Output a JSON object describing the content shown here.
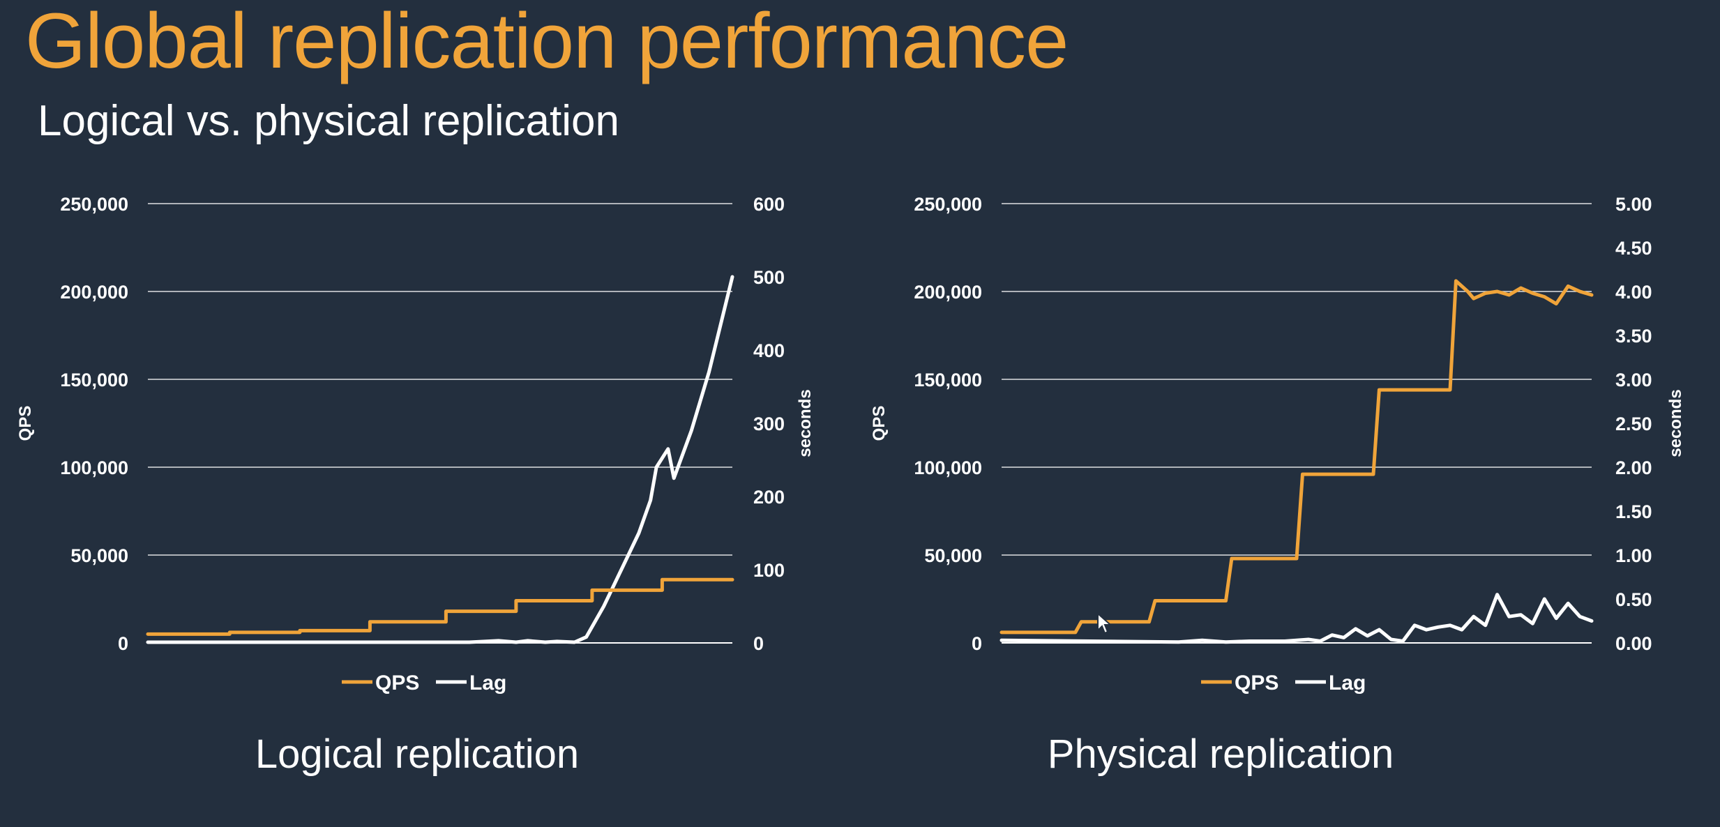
{
  "page": {
    "title": "Global replication performance",
    "subtitle": "Logical vs. physical replication"
  },
  "colors": {
    "background": "#232f3e",
    "qps": "#f0a43a",
    "lag": "#ffffff",
    "title": "#f0a43a",
    "grid": "#ffffff"
  },
  "chart_data": [
    {
      "type": "line",
      "title": "Logical replication",
      "ylabel": "QPS",
      "ylabel2": "seconds",
      "ylim": [
        0,
        250000
      ],
      "ylim2": [
        0,
        600
      ],
      "yticks": [
        "250,000",
        "200,000",
        "150,000",
        "100,000",
        "50,000",
        "0"
      ],
      "yticks2": [
        "600",
        "500",
        "400",
        "300",
        "200",
        "100",
        "0"
      ],
      "grid": true,
      "legend": "bottom",
      "series": [
        {
          "name": "QPS",
          "axis": "left",
          "color": "#f0a43a",
          "points": [
            [
              0,
              5000
            ],
            [
              14,
              5000
            ],
            [
              14,
              6000
            ],
            [
              26,
              6000
            ],
            [
              26,
              7000
            ],
            [
              38,
              7000
            ],
            [
              38,
              12000
            ],
            [
              51,
              12000
            ],
            [
              51,
              18000
            ],
            [
              63,
              18000
            ],
            [
              63,
              24000
            ],
            [
              76,
              24000
            ],
            [
              76,
              30000
            ],
            [
              88,
              30000
            ],
            [
              88,
              36000
            ],
            [
              100,
              36000
            ]
          ]
        },
        {
          "name": "Lag",
          "axis": "right",
          "color": "#ffffff",
          "points": [
            [
              0,
              1
            ],
            [
              50,
              1
            ],
            [
              55,
              1
            ],
            [
              60,
              3
            ],
            [
              63,
              1
            ],
            [
              65,
              3
            ],
            [
              68,
              1
            ],
            [
              70,
              2
            ],
            [
              73,
              1
            ],
            [
              75,
              8
            ],
            [
              78,
              50
            ],
            [
              81,
              100
            ],
            [
              84,
              150
            ],
            [
              86,
              195
            ],
            [
              87,
              240
            ],
            [
              89,
              265
            ],
            [
              90,
              225
            ],
            [
              93,
              290
            ],
            [
              96,
              370
            ],
            [
              100,
              500
            ]
          ]
        }
      ]
    },
    {
      "type": "line",
      "title": "Physical replication",
      "ylabel": "QPS",
      "ylabel2": "seconds",
      "ylim": [
        0,
        250000
      ],
      "ylim2": [
        0,
        5
      ],
      "yticks": [
        "250,000",
        "200,000",
        "150,000",
        "100,000",
        "50,000",
        "0"
      ],
      "yticks2": [
        "5.00",
        "4.50",
        "4.00",
        "3.50",
        "3.00",
        "2.50",
        "2.00",
        "1.50",
        "1.00",
        "0.50",
        "0.00"
      ],
      "grid": true,
      "legend": "bottom",
      "series": [
        {
          "name": "QPS",
          "axis": "left",
          "color": "#f0a43a",
          "points": [
            [
              0,
              6000
            ],
            [
              12.5,
              6000
            ],
            [
              13.5,
              12000
            ],
            [
              25,
              12000
            ],
            [
              26,
              24000
            ],
            [
              38,
              24000
            ],
            [
              39,
              48000
            ],
            [
              50,
              48000
            ],
            [
              51,
              96000
            ],
            [
              63,
              96000
            ],
            [
              64,
              144000
            ],
            [
              76,
              144000
            ],
            [
              77,
              206000
            ],
            [
              79,
              200000
            ],
            [
              80,
              196000
            ],
            [
              82,
              199000
            ],
            [
              84,
              200000
            ],
            [
              86,
              198000
            ],
            [
              88,
              202000
            ],
            [
              90,
              199000
            ],
            [
              92,
              197000
            ],
            [
              94,
              193000
            ],
            [
              96,
              203000
            ],
            [
              98,
              200000
            ],
            [
              100,
              198000
            ]
          ]
        },
        {
          "name": "Lag",
          "axis": "right",
          "color": "#ffffff",
          "points": [
            [
              0,
              0.03
            ],
            [
              30,
              0.01
            ],
            [
              34,
              0.03
            ],
            [
              38,
              0.01
            ],
            [
              42,
              0.02
            ],
            [
              48,
              0.02
            ],
            [
              52,
              0.04
            ],
            [
              54,
              0.02
            ],
            [
              56,
              0.09
            ],
            [
              58,
              0.06
            ],
            [
              60,
              0.16
            ],
            [
              62,
              0.08
            ],
            [
              64,
              0.15
            ],
            [
              66,
              0.04
            ],
            [
              68,
              0.02
            ],
            [
              70,
              0.2
            ],
            [
              72,
              0.15
            ],
            [
              74,
              0.18
            ],
            [
              76,
              0.2
            ],
            [
              78,
              0.15
            ],
            [
              80,
              0.3
            ],
            [
              82,
              0.2
            ],
            [
              84,
              0.55
            ],
            [
              86,
              0.3
            ],
            [
              88,
              0.32
            ],
            [
              90,
              0.22
            ],
            [
              92,
              0.5
            ],
            [
              94,
              0.28
            ],
            [
              96,
              0.45
            ],
            [
              98,
              0.3
            ],
            [
              100,
              0.25
            ]
          ]
        }
      ]
    }
  ]
}
